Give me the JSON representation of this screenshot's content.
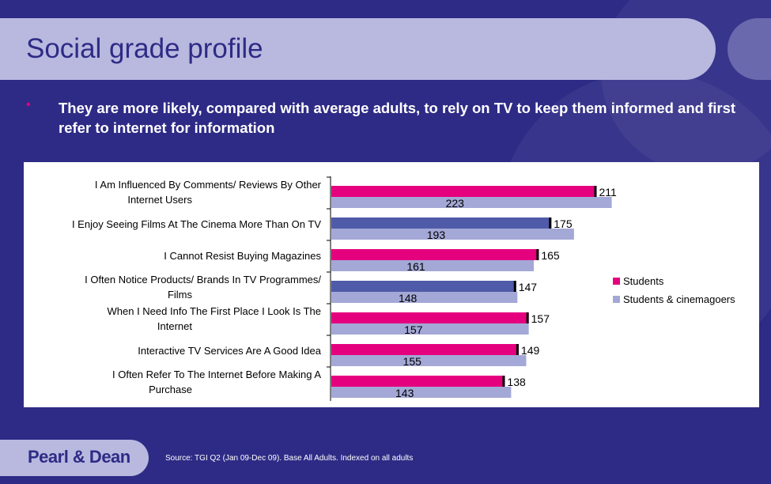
{
  "slide": {
    "title": "Social grade profile",
    "bullet": "They are more likely, compared with average adults, to rely on TV to keep them informed and first refer to internet for information",
    "source": "Source: TGI Q2 (Jan 09-Dec 09). Base All Adults. Indexed on all adults",
    "logo": "Pearl & Dean"
  },
  "colors": {
    "background": "#2e2b86",
    "title_bar": "#b9b8df",
    "bullet": "#e5007e"
  },
  "chart_data": {
    "type": "bar",
    "orientation": "horizontal",
    "categories": [
      "I Am Influenced By Comments/ Reviews By Other Internet Users",
      "I Enjoy Seeing Films At The Cinema More Than On TV",
      "I Cannot Resist Buying Magazines",
      "I Often Notice Products/ Brands In TV Programmes/ Films",
      "When I Need Info The First Place I Look Is The Internet",
      "Interactive TV Services Are A Good Idea",
      "I Often Refer To The Internet Before Making A Purchase"
    ],
    "series": [
      {
        "name": "Students",
        "values": [
          211,
          175,
          165,
          147,
          157,
          149,
          138
        ],
        "color": "#e5007e"
      },
      {
        "name": "Students & cinemagoers",
        "values": [
          223,
          193,
          161,
          148,
          157,
          155,
          143
        ],
        "color": "#a4a8d6"
      }
    ],
    "xlim": [
      0,
      250
    ],
    "legend_position": "right",
    "grid": false
  }
}
